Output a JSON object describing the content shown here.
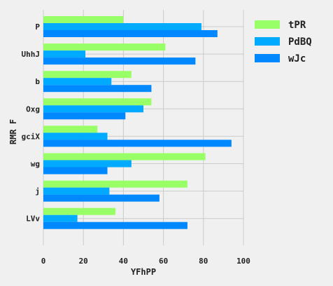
{
  "chart_data": {
    "type": "bar",
    "orientation": "horizontal",
    "categories": [
      "P",
      "UhhJ",
      "b",
      "Oxg",
      "gciX",
      "wg",
      "j",
      "LVv"
    ],
    "series": [
      {
        "name": "tPR",
        "color": "#99ff66",
        "values": [
          40,
          61,
          44,
          54,
          27,
          81,
          72,
          36
        ]
      },
      {
        "name": "PdBQ",
        "color": "#00aaff",
        "values": [
          79,
          21,
          34,
          50,
          32,
          44,
          33,
          17
        ]
      },
      {
        "name": "wJc",
        "color": "#0088ff",
        "values": [
          87,
          76,
          54,
          41,
          94,
          32,
          58,
          72
        ]
      }
    ],
    "xlabel": "YFhPP",
    "ylabel": "RMR F",
    "xlim": [
      0,
      100
    ],
    "xticks": [
      0,
      20,
      40,
      60,
      80,
      100
    ],
    "grid": true,
    "legend_position": "outside-right-top"
  }
}
